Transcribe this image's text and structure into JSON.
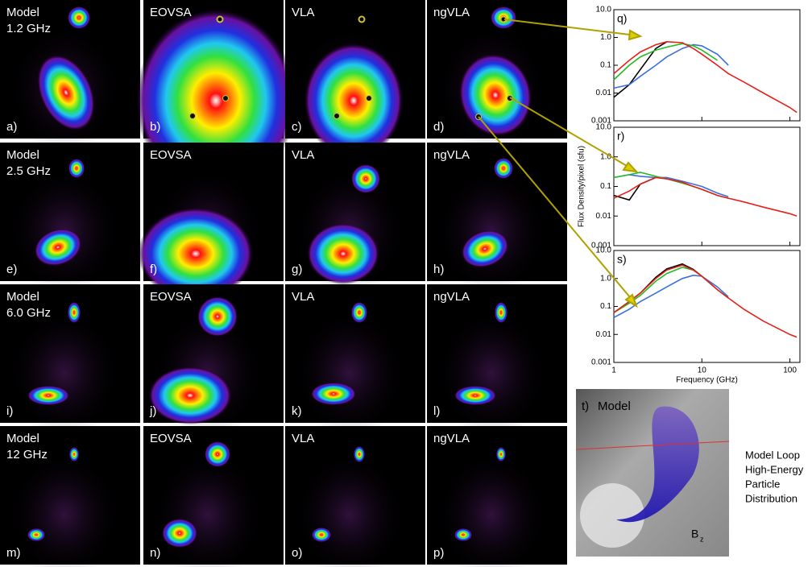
{
  "panels": [
    {
      "title": [
        "Model",
        "1.2 GHz"
      ],
      "label": "a)"
    },
    {
      "title": [
        "EOVSA"
      ],
      "label": "b)"
    },
    {
      "title": [
        "VLA"
      ],
      "label": "c)"
    },
    {
      "title": [
        "ngVLA"
      ],
      "label": "d)"
    },
    {
      "title": [
        "Model",
        "2.5 GHz"
      ],
      "label": "e)"
    },
    {
      "title": [
        "EOVSA"
      ],
      "label": "f)"
    },
    {
      "title": [
        "VLA"
      ],
      "label": "g)"
    },
    {
      "title": [
        "ngVLA"
      ],
      "label": "h)"
    },
    {
      "title": [
        "Model",
        "6.0 GHz"
      ],
      "label": "i)"
    },
    {
      "title": [
        "EOVSA"
      ],
      "label": "j)"
    },
    {
      "title": [
        "VLA"
      ],
      "label": "k)"
    },
    {
      "title": [
        "ngVLA"
      ],
      "label": "l)"
    },
    {
      "title": [
        "Model",
        "12 GHz"
      ],
      "label": "m)"
    },
    {
      "title": [
        "EOVSA"
      ],
      "label": "n)"
    },
    {
      "title": [
        "VLA"
      ],
      "label": "o)"
    },
    {
      "title": [
        "ngVLA"
      ],
      "label": "p)"
    }
  ],
  "chart_data": [
    {
      "type": "line",
      "title": "q)",
      "log_x": true,
      "log_y": true,
      "x": [
        1,
        1.5,
        2,
        3,
        4,
        6,
        8,
        10,
        15,
        20,
        30,
        50,
        100,
        120
      ],
      "xlim": [
        1,
        130
      ],
      "ylim": [
        0.001,
        10
      ],
      "xticks": [
        1,
        10,
        100
      ],
      "yticks": [
        0.001,
        0.01,
        0.1,
        {
          "value": 1,
          "label": "1.0"
        },
        {
          "value": 10,
          "label": "10.0"
        }
      ],
      "series": [
        {
          "name": "Model",
          "color": "#000000",
          "values": [
            0.007,
            0.02,
            0.07,
            0.4,
            0.7,
            null,
            null,
            null,
            null,
            null,
            null,
            null,
            null,
            null
          ]
        },
        {
          "name": "EOVSA",
          "color": "#3a6fe0",
          "values": [
            0.015,
            0.02,
            0.04,
            0.1,
            0.2,
            0.4,
            0.55,
            0.5,
            0.25,
            0.1,
            null,
            null,
            null,
            null
          ]
        },
        {
          "name": "VLA",
          "color": "#22bb22",
          "values": [
            0.03,
            0.1,
            0.2,
            0.35,
            0.45,
            0.6,
            0.5,
            0.35,
            0.15,
            null,
            null,
            null,
            null,
            null
          ]
        },
        {
          "name": "ngVLA",
          "color": "#e8201a",
          "values": [
            0.05,
            0.15,
            0.3,
            0.55,
            0.7,
            0.65,
            0.4,
            0.25,
            0.1,
            0.05,
            0.025,
            0.01,
            0.003,
            0.002
          ]
        }
      ]
    },
    {
      "type": "line",
      "title": "r)",
      "log_x": true,
      "log_y": true,
      "ylabel": "Flux Density/pixel (sfu)",
      "x": [
        1,
        1.5,
        2,
        3,
        4,
        6,
        8,
        10,
        15,
        20,
        30,
        50,
        100,
        120
      ],
      "xlim": [
        1,
        130
      ],
      "ylim": [
        0.001,
        10
      ],
      "xticks": [
        1,
        10,
        100
      ],
      "yticks": [
        0.001,
        0.01,
        0.1,
        {
          "value": 1,
          "label": "1.0"
        },
        {
          "value": 10,
          "label": "10.0"
        }
      ],
      "series": [
        {
          "name": "Model",
          "color": "#000000",
          "values": [
            0.05,
            0.035,
            0.12,
            0.2,
            null,
            null,
            null,
            null,
            null,
            null,
            null,
            null,
            null,
            null
          ]
        },
        {
          "name": "EOVSA",
          "color": "#3a6fe0",
          "values": [
            0.2,
            0.25,
            0.22,
            0.2,
            0.2,
            0.15,
            0.12,
            0.1,
            0.06,
            0.045,
            null,
            null,
            null,
            null
          ]
        },
        {
          "name": "VLA",
          "color": "#22bb22",
          "values": [
            0.2,
            0.25,
            0.3,
            0.22,
            0.18,
            0.13,
            0.1,
            0.08,
            0.05,
            0.04,
            null,
            null,
            null,
            null
          ]
        },
        {
          "name": "ngVLA",
          "color": "#e8201a",
          "values": [
            0.04,
            0.07,
            0.12,
            0.2,
            0.18,
            0.14,
            0.1,
            0.08,
            0.05,
            0.04,
            0.03,
            0.02,
            0.012,
            0.01
          ]
        }
      ]
    },
    {
      "type": "line",
      "title": "s)",
      "log_x": true,
      "log_y": true,
      "xlabel": "Frequency (GHz)",
      "x": [
        1,
        1.5,
        2,
        3,
        4,
        6,
        8,
        10,
        15,
        20,
        30,
        50,
        100,
        120
      ],
      "xlim": [
        1,
        130
      ],
      "ylim": [
        0.001,
        10
      ],
      "xticks": [
        1,
        10,
        100
      ],
      "yticks": [
        0.001,
        0.01,
        0.1,
        {
          "value": 1,
          "label": "1.0"
        },
        {
          "value": 10,
          "label": "10.0"
        }
      ],
      "series": [
        {
          "name": "Model",
          "color": "#000000",
          "values": [
            0.06,
            0.15,
            0.3,
            1.1,
            2.2,
            3.3,
            2.1,
            1.2,
            null,
            null,
            null,
            null,
            null,
            null
          ]
        },
        {
          "name": "EOVSA",
          "color": "#3a6fe0",
          "values": [
            0.04,
            0.08,
            0.15,
            0.3,
            0.5,
            1.0,
            1.3,
            1.2,
            0.5,
            0.22,
            null,
            null,
            null,
            null
          ]
        },
        {
          "name": "VLA",
          "color": "#22bb22",
          "values": [
            0.06,
            0.13,
            0.25,
            0.8,
            1.5,
            2.5,
            2.0,
            1.2,
            0.4,
            0.2,
            null,
            null,
            null,
            null
          ]
        },
        {
          "name": "ngVLA",
          "color": "#e8201a",
          "values": [
            0.06,
            0.15,
            0.3,
            1.0,
            2.0,
            3.0,
            2.0,
            1.2,
            0.4,
            0.2,
            0.08,
            0.03,
            0.01,
            0.008
          ]
        }
      ]
    }
  ],
  "model_panel": {
    "label": "t)",
    "title": "Model",
    "axis_label": "B",
    "axis_sub": "z"
  },
  "caption_lines": [
    "Model Loop",
    "High-Energy",
    "Particle",
    "Distribution"
  ]
}
